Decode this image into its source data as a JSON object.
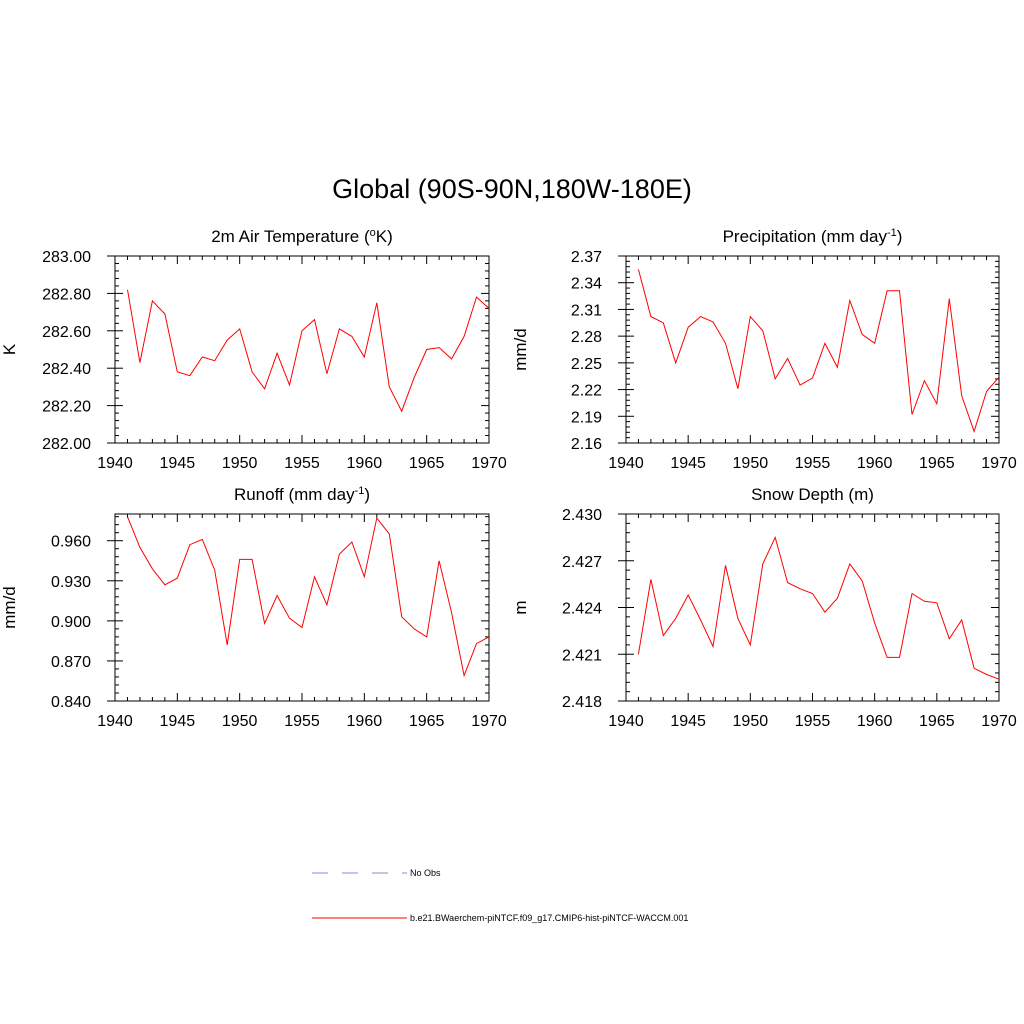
{
  "title": "Global (90S-90N,180W-180E)",
  "legend": {
    "obs_label": "No Obs",
    "obs_color": "#a0a0e0",
    "model_label": "b.e21.BWaerchem-piNTCF.f09_g17.CMIP6-hist-piNTCF-WACCM.001",
    "model_color": "#ff0000"
  },
  "chart_data": [
    {
      "type": "line",
      "title": "2m Air Temperature (°K)",
      "title_main": "2m Air Temperature (",
      "title_sup": "o",
      "title_end": "K)",
      "ylabel": "K",
      "xlim": [
        1940,
        1970
      ],
      "ylim": [
        282.0,
        283.0
      ],
      "xticks": [
        1940,
        1945,
        1950,
        1955,
        1960,
        1965,
        1970
      ],
      "yticks": [
        "282.00",
        "282.20",
        "282.40",
        "282.60",
        "282.80",
        "283.00"
      ],
      "yticks_values": [
        282.0,
        282.2,
        282.4,
        282.6,
        282.8,
        283.0
      ],
      "series": [
        {
          "x": [
            1941,
            1942,
            1943,
            1944,
            1945,
            1946,
            1947,
            1948,
            1949,
            1950,
            1951,
            1952,
            1953,
            1954,
            1955,
            1956,
            1957,
            1958,
            1959,
            1960,
            1961,
            1962,
            1963,
            1964,
            1965,
            1966,
            1967,
            1968,
            1969,
            1970
          ],
          "values": [
            282.82,
            282.43,
            282.76,
            282.69,
            282.38,
            282.36,
            282.46,
            282.44,
            282.55,
            282.61,
            282.38,
            282.29,
            282.48,
            282.31,
            282.6,
            282.66,
            282.37,
            282.61,
            282.57,
            282.46,
            282.75,
            282.3,
            282.17,
            282.35,
            282.5,
            282.51,
            282.45,
            282.57,
            282.78,
            282.72
          ]
        }
      ]
    },
    {
      "type": "line",
      "title": "Precipitation (mm day-1)",
      "title_main": "Precipitation (mm day",
      "title_sup": "-1",
      "title_end": ")",
      "ylabel": "mm/d",
      "xlim": [
        1940,
        1970
      ],
      "ylim": [
        2.16,
        2.37
      ],
      "xticks": [
        1940,
        1945,
        1950,
        1955,
        1960,
        1965,
        1970
      ],
      "yticks": [
        "2.16",
        "2.19",
        "2.22",
        "2.25",
        "2.28",
        "2.31",
        "2.34",
        "2.37"
      ],
      "yticks_values": [
        2.16,
        2.19,
        2.22,
        2.25,
        2.28,
        2.31,
        2.34,
        2.37
      ],
      "series": [
        {
          "x": [
            1941,
            1942,
            1943,
            1944,
            1945,
            1946,
            1947,
            1948,
            1949,
            1950,
            1951,
            1952,
            1953,
            1954,
            1955,
            1956,
            1957,
            1958,
            1959,
            1960,
            1961,
            1962,
            1963,
            1964,
            1965,
            1966,
            1967,
            1968,
            1969,
            1970
          ],
          "values": [
            2.355,
            2.302,
            2.295,
            2.25,
            2.29,
            2.302,
            2.296,
            2.272,
            2.221,
            2.302,
            2.286,
            2.232,
            2.255,
            2.225,
            2.233,
            2.272,
            2.245,
            2.32,
            2.282,
            2.272,
            2.331,
            2.331,
            2.192,
            2.23,
            2.204,
            2.322,
            2.213,
            2.173,
            2.218,
            2.234
          ]
        }
      ]
    },
    {
      "type": "line",
      "title": "Runoff (mm day-1)",
      "title_main": "Runoff (mm day",
      "title_sup": "-1",
      "title_end": ")",
      "ylabel": "mm/d",
      "xlim": [
        1940,
        1970
      ],
      "ylim": [
        0.84,
        0.98
      ],
      "xticks": [
        1940,
        1945,
        1950,
        1955,
        1960,
        1965,
        1970
      ],
      "yticks": [
        "0.840",
        "0.870",
        "0.900",
        "0.930",
        "0.960"
      ],
      "yticks_values": [
        0.84,
        0.87,
        0.9,
        0.93,
        0.96
      ],
      "series": [
        {
          "x": [
            1941,
            1942,
            1943,
            1944,
            1945,
            1946,
            1947,
            1948,
            1949,
            1950,
            1951,
            1952,
            1953,
            1954,
            1955,
            1956,
            1957,
            1958,
            1959,
            1960,
            1961,
            1962,
            1963,
            1964,
            1965,
            1966,
            1967,
            1968,
            1969,
            1970
          ],
          "values": [
            0.978,
            0.955,
            0.939,
            0.927,
            0.932,
            0.957,
            0.961,
            0.938,
            0.882,
            0.946,
            0.946,
            0.898,
            0.919,
            0.902,
            0.895,
            0.933,
            0.912,
            0.95,
            0.959,
            0.933,
            0.977,
            0.965,
            0.903,
            0.894,
            0.888,
            0.945,
            0.906,
            0.859,
            0.883,
            0.888
          ]
        }
      ]
    },
    {
      "type": "line",
      "title": "Snow Depth (m)",
      "title_main": "Snow Depth (m)",
      "title_sup": "",
      "title_end": "",
      "ylabel": "m",
      "xlim": [
        1940,
        1970
      ],
      "ylim": [
        2.418,
        2.43
      ],
      "xticks": [
        1940,
        1945,
        1950,
        1955,
        1960,
        1965,
        1970
      ],
      "yticks": [
        "2.418",
        "2.421",
        "2.424",
        "2.427",
        "2.430"
      ],
      "yticks_values": [
        2.418,
        2.421,
        2.424,
        2.427,
        2.43
      ],
      "series": [
        {
          "x": [
            1941,
            1942,
            1943,
            1944,
            1945,
            1946,
            1947,
            1948,
            1949,
            1950,
            1951,
            1952,
            1953,
            1954,
            1955,
            1956,
            1957,
            1958,
            1959,
            1960,
            1961,
            1962,
            1963,
            1964,
            1965,
            1966,
            1967,
            1968,
            1969,
            1970
          ],
          "values": [
            2.421,
            2.4258,
            2.4222,
            2.4233,
            2.4248,
            2.4232,
            2.4215,
            2.4267,
            2.4233,
            2.4216,
            2.4268,
            2.4285,
            2.4256,
            2.4252,
            2.4249,
            2.4237,
            2.4246,
            2.4268,
            2.4257,
            2.423,
            2.4208,
            2.4208,
            2.4249,
            2.4244,
            2.4243,
            2.422,
            2.4232,
            2.4201,
            2.4197,
            2.4194
          ]
        }
      ]
    }
  ]
}
